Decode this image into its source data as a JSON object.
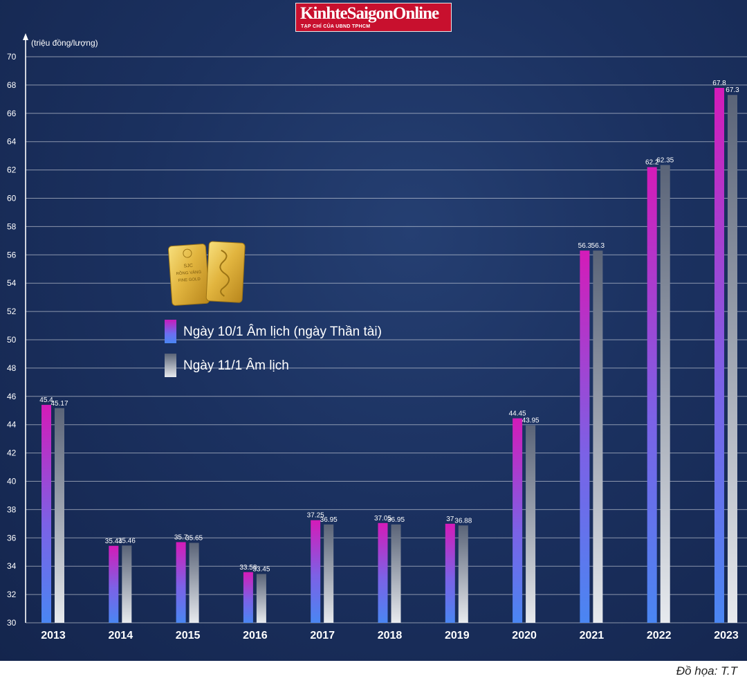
{
  "brand": {
    "name": "KinhteSaigonOnline",
    "subtitle": "TẠP CHÍ CỦA UBND TPHCM"
  },
  "gold_bar": {
    "texts": [
      "SJC",
      "RỒNG VÀNG",
      "FINE GOLD"
    ]
  },
  "chart_data": {
    "type": "bar",
    "ylabel": "(triệu đồng/lượng)",
    "ylim": [
      30,
      70
    ],
    "yticks": [
      30,
      32,
      34,
      36,
      38,
      40,
      42,
      44,
      46,
      48,
      50,
      52,
      54,
      56,
      58,
      60,
      62,
      64,
      66,
      68,
      70
    ],
    "grid": true,
    "categories": [
      "2013",
      "2014",
      "2015",
      "2016",
      "2017",
      "2018",
      "2019",
      "2020",
      "2021",
      "2022",
      "2023"
    ],
    "series": [
      {
        "name": "Ngày 10/1 Âm lịch (ngày Thần tài)",
        "values": [
          45.4,
          35.44,
          35.7,
          33.58,
          37.25,
          37.05,
          37,
          44.45,
          56.3,
          62.2,
          67.8
        ],
        "labels": [
          "45.4",
          "35.44",
          "35.7",
          "33.58",
          "37.25",
          "37.05",
          "37",
          "44.45",
          "56.3",
          "62.2",
          "67.8"
        ],
        "color_top": "#d41bb8",
        "color_bottom": "#4a86f2"
      },
      {
        "name": "Ngày 11/1 Âm lịch",
        "values": [
          45.17,
          35.46,
          35.65,
          33.45,
          36.95,
          36.95,
          36.88,
          43.95,
          56.3,
          62.35,
          67.3
        ],
        "labels": [
          "45.17",
          "35.46",
          "35.65",
          "33.45",
          "36.95",
          "36.95",
          "36.88",
          "43.95",
          "56.3",
          "62.35",
          "67.3"
        ],
        "color_top": "#5a6478",
        "color_bottom": "#e7eaee"
      }
    ]
  },
  "credit": "Đồ họa: T.T"
}
